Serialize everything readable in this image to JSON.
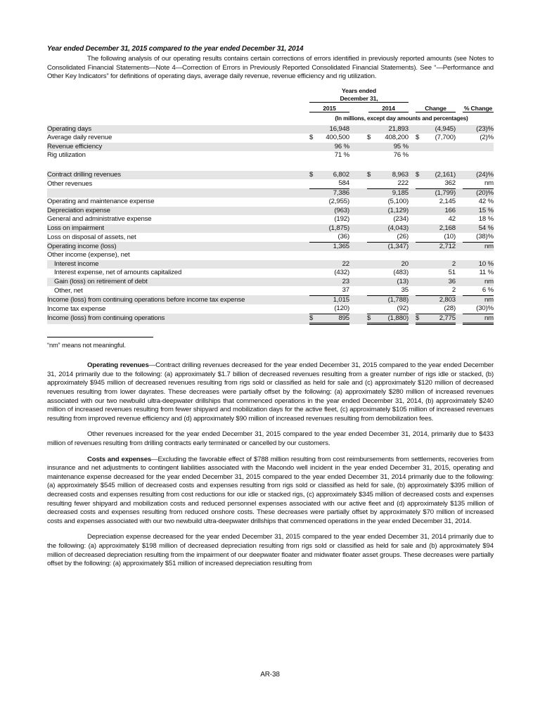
{
  "title": "Year ended December 31, 2015 compared to the year ended December 31, 2014",
  "intro": "The following analysis of our operating results contains certain corrections of errors identified in previously reported amounts (see Notes to Consolidated Financial Statements—Note 4—Correction of Errors in Previously Reported Consolidated Financial Statements). See “—Performance and Other Key Indicators” for definitions of operating days, average daily revenue, revenue efficiency and rig utilization.",
  "table": {
    "header_group": "Years ended",
    "header_group2": "December 31,",
    "col_2015": "2015",
    "col_2014": "2014",
    "col_change": "Change",
    "col_pct": "% Change",
    "units": "(In millions, except day amounts and percentages)",
    "rows": [
      {
        "label": "Operating days",
        "v2015": "16,948",
        "v2014": "21,893",
        "chg": "(4,945)",
        "pct": "(23)%"
      },
      {
        "label": "Average daily revenue",
        "c2015": "$",
        "v2015": "400,500",
        "c2014": "$",
        "v2014": "408,200",
        "cchg": "$",
        "chg": "(7,700)",
        "pct": "(2)%"
      },
      {
        "label": "Revenue efficiency",
        "v2015": "96 %",
        "v2014": "95 %",
        "chg": "",
        "pct": ""
      },
      {
        "label": "Rig utilization",
        "v2015": "71 %",
        "v2014": "76 %",
        "chg": "",
        "pct": ""
      },
      {
        "spacer": true
      },
      {
        "label": "Contract drilling revenues",
        "c2015": "$",
        "v2015": "6,802",
        "c2014": "$",
        "v2014": "8,963",
        "cchg": "$",
        "chg": "(2,161)",
        "pct": "(24)%"
      },
      {
        "label": "Other revenues",
        "v2015": "584",
        "v2014": "222",
        "chg": "362",
        "pct": "nm",
        "rule": "single"
      },
      {
        "label": "",
        "v2015": "7,386",
        "v2014": "9,185",
        "chg": "(1,799)",
        "pct": "(20)%"
      },
      {
        "label": "Operating and maintenance expense",
        "v2015": "(2,955)",
        "v2014": "(5,100)",
        "chg": "2,145",
        "pct": "42 %"
      },
      {
        "label": "Depreciation expense",
        "v2015": "(963)",
        "v2014": "(1,129)",
        "chg": "166",
        "pct": "15 %"
      },
      {
        "label": "General and administrative expense",
        "v2015": "(192)",
        "v2014": "(234)",
        "chg": "42",
        "pct": "18 %"
      },
      {
        "label": "Loss on impairment",
        "v2015": "(1,875)",
        "v2014": "(4,043)",
        "chg": "2,168",
        "pct": "54 %"
      },
      {
        "label": "Loss on disposal of assets, net",
        "v2015": "(36)",
        "v2014": "(26)",
        "chg": "(10)",
        "pct": "(38)%",
        "rule": "single"
      },
      {
        "label": "Operating income (loss)",
        "v2015": "1,365",
        "v2014": "(1,347)",
        "chg": "2,712",
        "pct": "nm"
      },
      {
        "label": "Other income (expense), net",
        "v2015": "",
        "v2014": "",
        "chg": "",
        "pct": ""
      },
      {
        "label": "Interest income",
        "indent": true,
        "v2015": "22",
        "v2014": "20",
        "chg": "2",
        "pct": "10 %"
      },
      {
        "label": "Interest expense, net of amounts capitalized",
        "indent": true,
        "v2015": "(432)",
        "v2014": "(483)",
        "chg": "51",
        "pct": "11 %"
      },
      {
        "label": "Gain (loss) on retirement of debt",
        "indent": true,
        "v2015": "23",
        "v2014": "(13)",
        "chg": "36",
        "pct": "nm"
      },
      {
        "label": "Other, net",
        "indent": true,
        "v2015": "37",
        "v2014": "35",
        "chg": "2",
        "pct": "6 %",
        "rule": "single"
      },
      {
        "label": "Income (loss) from continuing operations before income tax expense",
        "v2015": "1,015",
        "v2014": "(1,788)",
        "chg": "2,803",
        "pct": "nm"
      },
      {
        "label": "Income tax expense",
        "v2015": "(120)",
        "v2014": "(92)",
        "chg": "(28)",
        "pct": "(30)%",
        "rule": "single"
      },
      {
        "label": "Income (loss) from continuing operations",
        "c2015": "$",
        "v2015": "895",
        "c2014": "$",
        "v2014": "(1,880)",
        "cchg": "$",
        "chg": "2,775",
        "pct": "nm",
        "rule": "double"
      }
    ]
  },
  "footnote": "“nm” means not meaningful.",
  "paragraphs": [
    {
      "lead": "Operating revenues",
      "text": "—Contract drilling revenues decreased for the year ended December 31, 2015 compared to the year ended December 31, 2014 primarily due to the following: (a) approximately $1.7 billion of decreased revenues resulting from a greater number of rigs idle or stacked, (b) approximately $945 million of decreased revenues resulting from rigs sold or classified as held for sale and (c) approximately $120 million of decreased revenues resulting from lower dayrates.  These decreases were partially offset by the following: (a) approximately $280 million of increased revenues associated with our two newbuild ultra-deepwater drillships that commenced operations in the year ended December 31, 2014, (b) approximately $240 million of increased revenues resulting from fewer shipyard and mobilization days for the active fleet, (c) approximately $105 million of increased revenues resulting from improved revenue efficiency and (d) approximately $90 million of increased revenues resulting from demobilization fees."
    },
    {
      "lead": "",
      "text": "Other revenues increased for the year ended December 31, 2015 compared to the year ended December 31, 2014, primarily due to $433 million of revenues resulting from drilling contracts early terminated or cancelled by our customers."
    },
    {
      "lead": "Costs and expenses",
      "text": "—Excluding the favorable effect of $788 million resulting from cost reimbursements from settlements, recoveries from insurance and net adjustments to contingent liabilities associated with the Macondo well incident in the year ended December 31, 2015, operating and maintenance expense decreased for the year ended December 31, 2015 compared to the year ended December 31, 2014 primarily due to the following: (a) approximately $545 million of decreased costs and expenses resulting from rigs sold or classified as held for sale, (b) approximately $395 million of decreased costs and expenses resulting from cost reductions for our idle or stacked rigs, (c) approximately $345 million of decreased costs and expenses resulting fewer shipyard and mobilization costs and reduced personnel expenses associated with our active fleet and (d) approximately $135 million of decreased costs and expenses resulting from reduced onshore costs.  These decreases were partially offset by approximately $70 million of increased costs and expenses associated with our two newbuild ultra-deepwater drillships that commenced operations in the year ended December 31, 2014."
    },
    {
      "lead": "",
      "text": "Depreciation expense decreased for the year ended December 31, 2015 compared to the year ended December 31, 2014 primarily due to the following: (a) approximately $198 million of decreased depreciation resulting from rigs sold or classified as held for sale and (b) approximately $94 million of decreased depreciation resulting from the impairment of our deepwater floater and midwater floater asset groups.  These decreases were partially offset by the following: (a) approximately $51 million of increased depreciation resulting from"
    }
  ],
  "page_number": "AR-38"
}
